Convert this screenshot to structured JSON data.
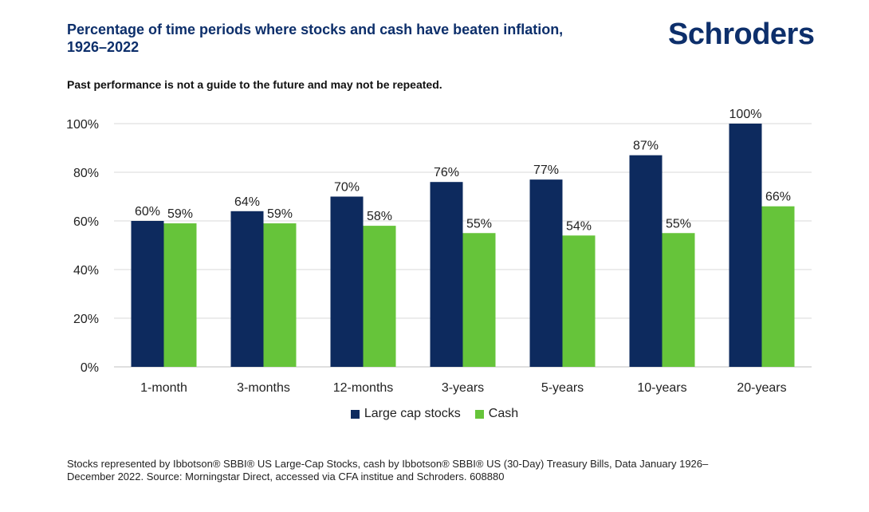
{
  "header": {
    "title_lines": [
      "Percentage of time periods where stocks and cash have beaten inflation,",
      "1926–2022"
    ],
    "logo_text": "Schroders",
    "disclaimer": "Past performance is not a guide to the future and may not be repeated."
  },
  "legend": {
    "stocks_label": "Large cap stocks",
    "cash_label": "Cash"
  },
  "footnote": {
    "lines": [
      "Stocks represented by Ibbotson® SBBI® US Large-Cap Stocks, cash by Ibbotson® SBBI® US (30-Day) Treasury Bills, Data January 1926–",
      "December 2022. Source: Morningstar Direct, accessed via CFA institue and Schroders. 608880"
    ]
  },
  "colors": {
    "stocks": "#0d2a5e",
    "cash": "#66c43a",
    "title": "#0d2f6b",
    "grid": "#d9d9d9"
  },
  "chart_data": {
    "type": "bar",
    "categories": [
      "1-month",
      "3-months",
      "12-months",
      "3-years",
      "5-years",
      "10-years",
      "20-years"
    ],
    "series": [
      {
        "name": "Large cap stocks",
        "values": [
          60,
          64,
          70,
          76,
          77,
          87,
          100
        ]
      },
      {
        "name": "Cash",
        "values": [
          59,
          59,
          58,
          55,
          54,
          55,
          66
        ]
      }
    ],
    "data_labels": [
      [
        "60%",
        "64%",
        "70%",
        "76%",
        "77%",
        "87%",
        "100%"
      ],
      [
        "59%",
        "59%",
        "58%",
        "55%",
        "54%",
        "55%",
        "66%"
      ]
    ],
    "y_ticks": [
      0,
      20,
      40,
      60,
      80,
      100
    ],
    "y_tick_labels": [
      "0%",
      "20%",
      "40%",
      "60%",
      "80%",
      "100%"
    ],
    "ylim": [
      0,
      100
    ],
    "grid": true,
    "legend_position": "bottom-center"
  }
}
